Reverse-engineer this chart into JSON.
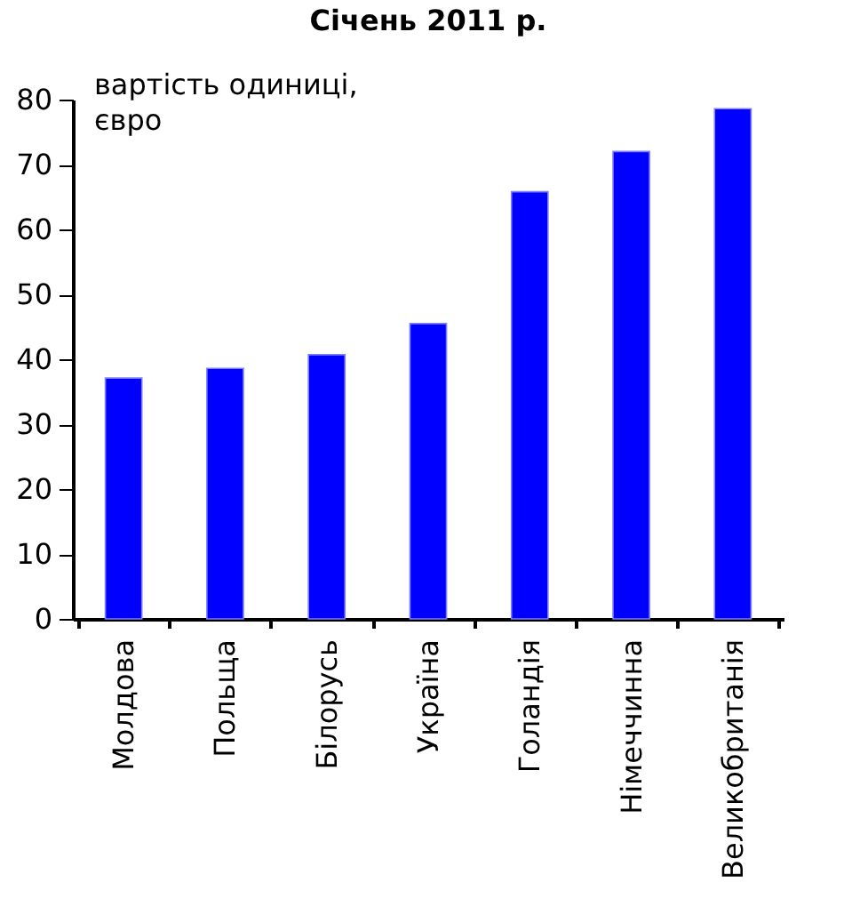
{
  "chart_data": {
    "type": "bar",
    "title": "Січень 2011 р.",
    "ylabel": "вартість одиниці,\nєвро",
    "categories": [
      "Молдова",
      "Польща",
      "Білорусь",
      "Україна",
      "Голандія",
      "Німеччинна",
      "Великобританія"
    ],
    "values": [
      37.1,
      38.6,
      40.7,
      45.5,
      65.8,
      72,
      78.6
    ],
    "color": "#0000ff",
    "ylim": [
      0,
      80
    ],
    "yticks": [
      0,
      10,
      20,
      30,
      40,
      50,
      60,
      70,
      80
    ],
    "grid": false
  }
}
